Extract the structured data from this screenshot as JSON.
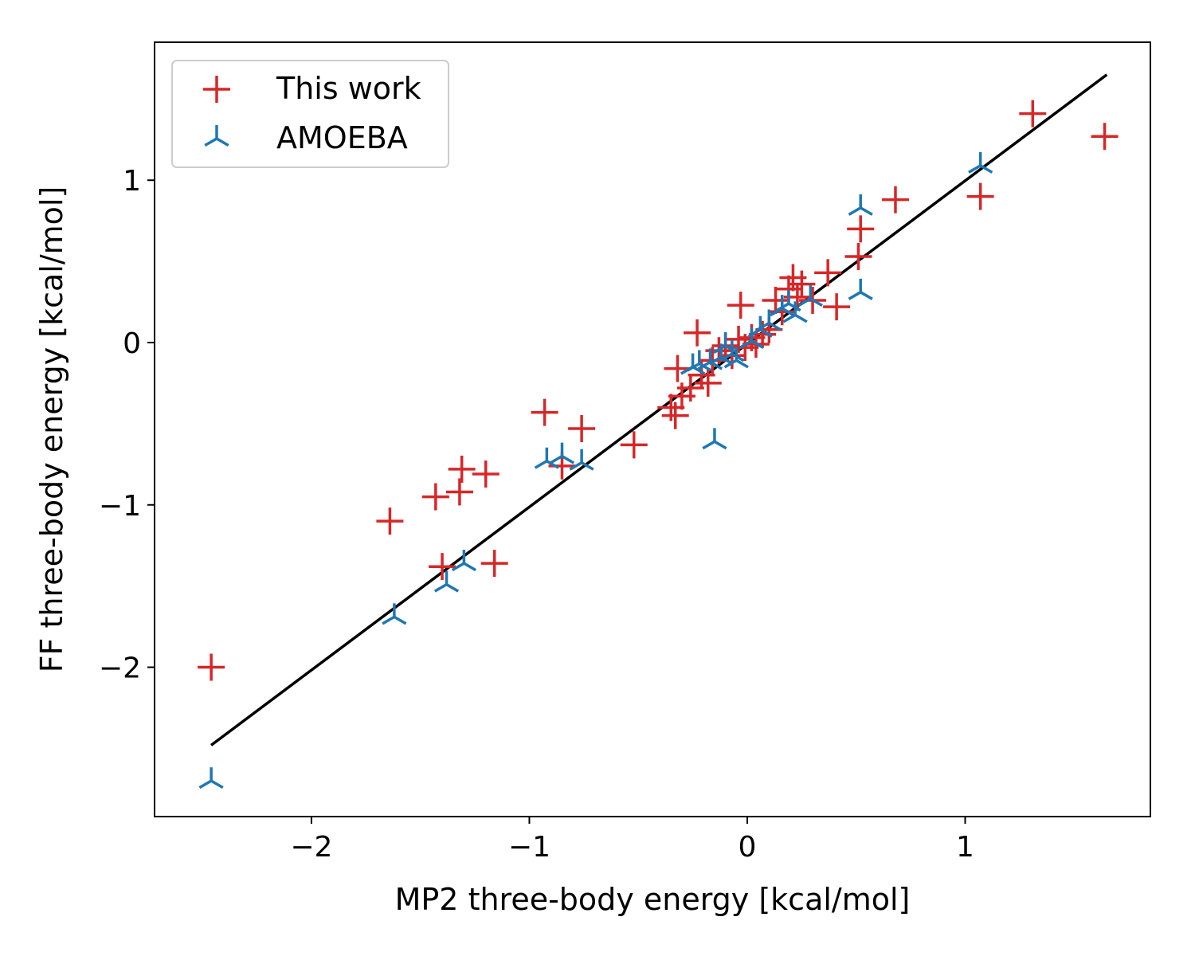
{
  "chart_data": {
    "type": "scatter",
    "title": "",
    "xlabel": "MP2 three-body energy [kcal/mol]",
    "ylabel": "FF three-body energy [kcal/mol]",
    "xlim": [
      -2.72,
      1.85
    ],
    "ylim": [
      -2.92,
      1.85
    ],
    "xticks": [
      -2,
      -1,
      0,
      1
    ],
    "yticks": [
      -2,
      -1,
      0,
      1
    ],
    "xtick_labels": [
      "−2",
      "−1",
      "0",
      "1"
    ],
    "ytick_labels": [
      "−2",
      "−1",
      "0",
      "1"
    ],
    "grid": false,
    "legend_position": "top-left",
    "reference_line": {
      "x": [
        -2.46,
        1.65
      ],
      "y": [
        -2.48,
        1.65
      ],
      "color": "#000000"
    },
    "series": [
      {
        "name": "This work",
        "marker": "plus",
        "color": "#d62728",
        "points": [
          [
            -2.46,
            -2.0
          ],
          [
            -1.64,
            -1.1
          ],
          [
            -1.43,
            -0.95
          ],
          [
            -1.4,
            -1.38
          ],
          [
            -1.31,
            -0.78
          ],
          [
            -1.32,
            -0.92
          ],
          [
            -1.2,
            -0.81
          ],
          [
            -1.16,
            -1.36
          ],
          [
            -0.93,
            -0.43
          ],
          [
            -0.85,
            -0.76
          ],
          [
            -0.76,
            -0.53
          ],
          [
            -0.52,
            -0.63
          ],
          [
            -0.35,
            -0.4
          ],
          [
            -0.33,
            -0.45
          ],
          [
            -0.32,
            -0.16
          ],
          [
            -0.3,
            -0.33
          ],
          [
            -0.26,
            -0.28
          ],
          [
            -0.23,
            0.06
          ],
          [
            -0.21,
            -0.2
          ],
          [
            -0.18,
            -0.25
          ],
          [
            -0.16,
            -0.11
          ],
          [
            -0.13,
            -0.05
          ],
          [
            -0.1,
            -0.02
          ],
          [
            -0.07,
            -0.08
          ],
          [
            -0.04,
            0.02
          ],
          [
            -0.03,
            0.23
          ],
          [
            -0.01,
            -0.03
          ],
          [
            0.02,
            0.03
          ],
          [
            0.04,
            -0.01
          ],
          [
            0.07,
            0.05
          ],
          [
            0.1,
            0.08
          ],
          [
            0.13,
            0.26
          ],
          [
            0.16,
            0.19
          ],
          [
            0.19,
            0.33
          ],
          [
            0.21,
            0.4
          ],
          [
            0.23,
            0.28
          ],
          [
            0.25,
            0.36
          ],
          [
            0.3,
            0.26
          ],
          [
            0.37,
            0.43
          ],
          [
            0.41,
            0.22
          ],
          [
            0.51,
            0.53
          ],
          [
            0.52,
            0.7
          ],
          [
            0.68,
            0.88
          ],
          [
            1.07,
            0.9
          ],
          [
            1.31,
            1.41
          ],
          [
            1.64,
            1.27
          ]
        ]
      },
      {
        "name": "AMOEBA",
        "marker": "tri_up",
        "color": "#1f77b4",
        "points": [
          [
            -2.46,
            -2.7
          ],
          [
            -1.62,
            -1.69
          ],
          [
            -1.38,
            -1.49
          ],
          [
            -1.3,
            -1.36
          ],
          [
            -0.92,
            -0.73
          ],
          [
            -0.85,
            -0.7
          ],
          [
            -0.76,
            -0.74
          ],
          [
            -0.25,
            -0.15
          ],
          [
            -0.22,
            -0.13
          ],
          [
            -0.17,
            -0.12
          ],
          [
            -0.15,
            -0.61
          ],
          [
            -0.12,
            -0.09
          ],
          [
            -0.1,
            -0.02
          ],
          [
            -0.07,
            -0.07
          ],
          [
            -0.05,
            -0.11
          ],
          [
            0.02,
            0.01
          ],
          [
            0.06,
            0.08
          ],
          [
            0.1,
            0.12
          ],
          [
            0.16,
            0.21
          ],
          [
            0.19,
            0.24
          ],
          [
            0.22,
            0.17
          ],
          [
            0.29,
            0.27
          ],
          [
            0.52,
            0.31
          ],
          [
            0.52,
            0.83
          ],
          [
            1.07,
            1.09
          ]
        ]
      }
    ]
  }
}
